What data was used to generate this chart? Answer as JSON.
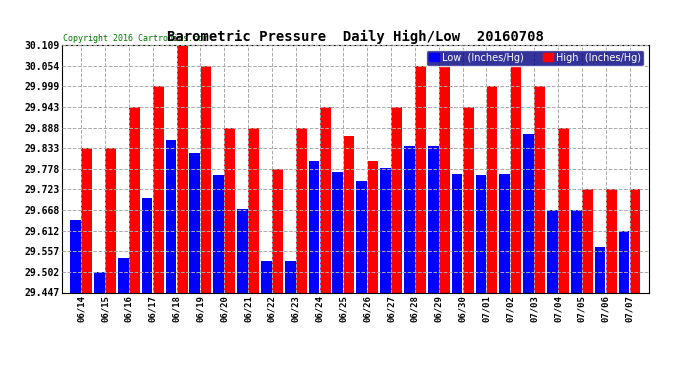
{
  "title": "Barometric Pressure  Daily High/Low  20160708",
  "copyright": "Copyright 2016 Cartronics.com",
  "legend_low": "Low  (Inches/Hg)",
  "legend_high": "High  (Inches/Hg)",
  "low_color": "#0000ff",
  "high_color": "#ff0000",
  "background_color": "#ffffff",
  "grid_color": "#aaaaaa",
  "ylim": [
    29.447,
    30.109
  ],
  "yticks": [
    29.447,
    29.502,
    29.557,
    29.612,
    29.668,
    29.723,
    29.778,
    29.833,
    29.888,
    29.943,
    29.999,
    30.054,
    30.109
  ],
  "dates": [
    "06/14",
    "06/15",
    "06/16",
    "06/17",
    "06/18",
    "06/19",
    "06/20",
    "06/21",
    "06/22",
    "06/23",
    "06/24",
    "06/25",
    "06/26",
    "06/27",
    "06/28",
    "06/29",
    "06/30",
    "07/01",
    "07/02",
    "07/03",
    "07/04",
    "07/05",
    "07/06",
    "07/07"
  ],
  "low_values": [
    29.64,
    29.502,
    29.54,
    29.7,
    29.855,
    29.82,
    29.76,
    29.67,
    29.53,
    29.53,
    29.8,
    29.77,
    29.745,
    29.78,
    29.84,
    29.84,
    29.763,
    29.76,
    29.763,
    29.87,
    29.668,
    29.668,
    29.57,
    29.612
  ],
  "high_values": [
    29.833,
    29.833,
    29.943,
    30.0,
    30.109,
    30.054,
    29.888,
    29.888,
    29.778,
    29.888,
    29.943,
    29.866,
    29.8,
    29.943,
    30.054,
    30.054,
    29.943,
    29.999,
    30.054,
    29.999,
    29.888,
    29.723,
    29.723,
    29.723
  ]
}
